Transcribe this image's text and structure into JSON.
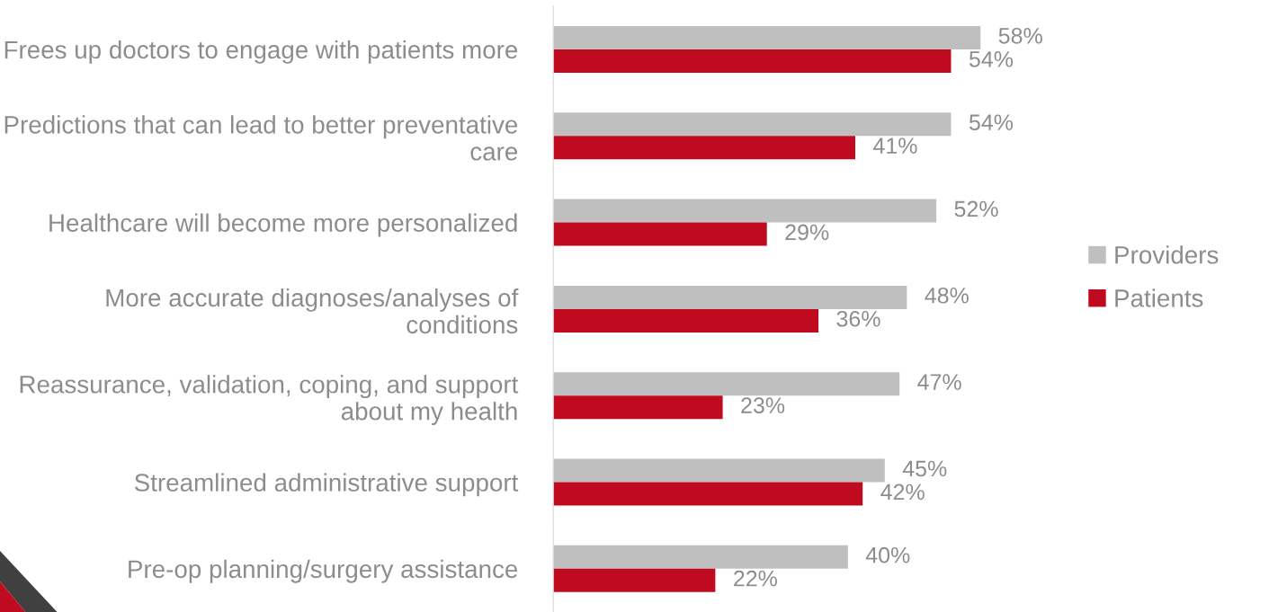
{
  "chart_data": {
    "type": "bar",
    "orientation": "horizontal",
    "categories": [
      "Frees up doctors to engage with patients more",
      "Predictions that can lead to better preventative care",
      "Healthcare will become more personalized",
      "More accurate diagnoses/analyses of conditions",
      "Reassurance, validation, coping, and support about my health",
      "Streamlined administrative support",
      "Pre-op planning/surgery assistance"
    ],
    "series": [
      {
        "name": "Providers",
        "color": "#bfbfbf",
        "values": [
          58,
          54,
          52,
          48,
          47,
          45,
          40
        ],
        "value_labels": [
          "58%",
          "54%",
          "52%",
          "48%",
          "47%",
          "45%",
          "40%"
        ]
      },
      {
        "name": "Patients",
        "color": "#c00a1f",
        "values": [
          54,
          41,
          29,
          36,
          23,
          42,
          22
        ],
        "value_labels": [
          "54%",
          "41%",
          "29%",
          "36%",
          "23%",
          "42%",
          "22%"
        ]
      }
    ],
    "tick_labels": "y",
    "grid": false,
    "legend": "right"
  }
}
